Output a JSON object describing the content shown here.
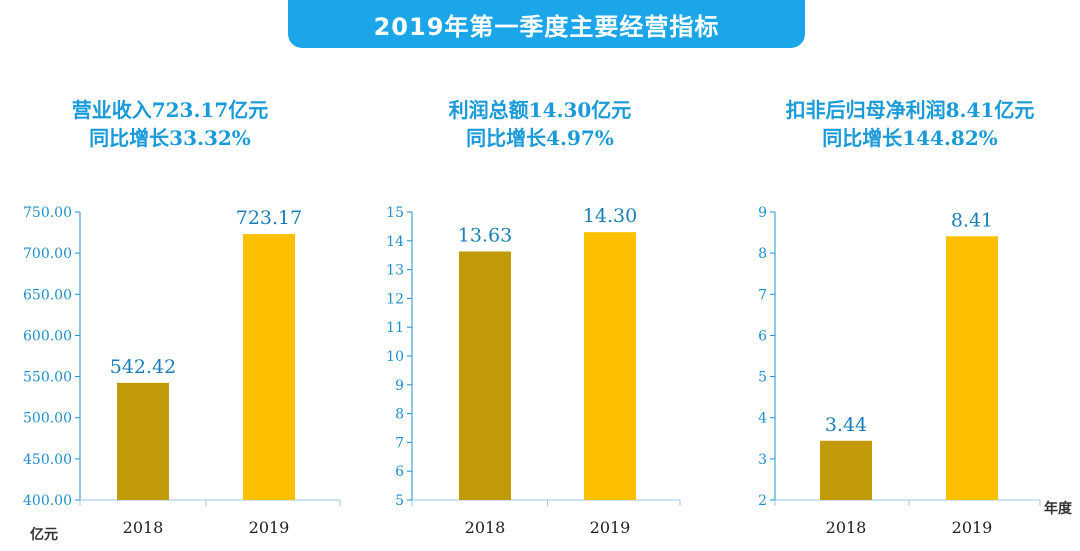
{
  "header": {
    "title": "2019年第一季度主要经营指标"
  },
  "colors": {
    "bar_2018": "#c19a0a",
    "bar_2019": "#fdc000",
    "axis": "#1e8fcf",
    "title_bg": "#1aa6e8",
    "headline": "#1a9ad8"
  },
  "panels": [
    {
      "line1": "营业收入723.17亿元",
      "line2": "同比增长33.32%"
    },
    {
      "line1": "利润总额14.30亿元",
      "line2": "同比增长4.97%"
    },
    {
      "line1": "扣非后归母净利润8.41亿元",
      "line2": "同比增长144.82%"
    }
  ],
  "footer": {
    "left_unit": "亿元",
    "right_unit": "年度"
  },
  "chart_data": [
    {
      "type": "bar",
      "categories": [
        "2018",
        "2019"
      ],
      "values": [
        542.42,
        723.17
      ],
      "value_labels": [
        "542.42",
        "723.17"
      ],
      "ylim": [
        400,
        750
      ],
      "yticks": [
        "400.00",
        "450.00",
        "500.00",
        "550.00",
        "600.00",
        "650.00",
        "700.00",
        "750.00"
      ],
      "ylabel": "亿元"
    },
    {
      "type": "bar",
      "categories": [
        "2018",
        "2019"
      ],
      "values": [
        13.63,
        14.3
      ],
      "value_labels": [
        "13.63",
        "14.30"
      ],
      "ylim": [
        5,
        15
      ],
      "yticks": [
        "5",
        "6",
        "7",
        "8",
        "9",
        "10",
        "11",
        "12",
        "13",
        "14",
        "15"
      ]
    },
    {
      "type": "bar",
      "categories": [
        "2018",
        "2019"
      ],
      "values": [
        3.44,
        8.41
      ],
      "value_labels": [
        "3.44",
        "8.41"
      ],
      "ylim": [
        2,
        9
      ],
      "yticks": [
        "2",
        "3",
        "4",
        "5",
        "6",
        "7",
        "8",
        "9"
      ],
      "xlabel": "年度"
    }
  ]
}
